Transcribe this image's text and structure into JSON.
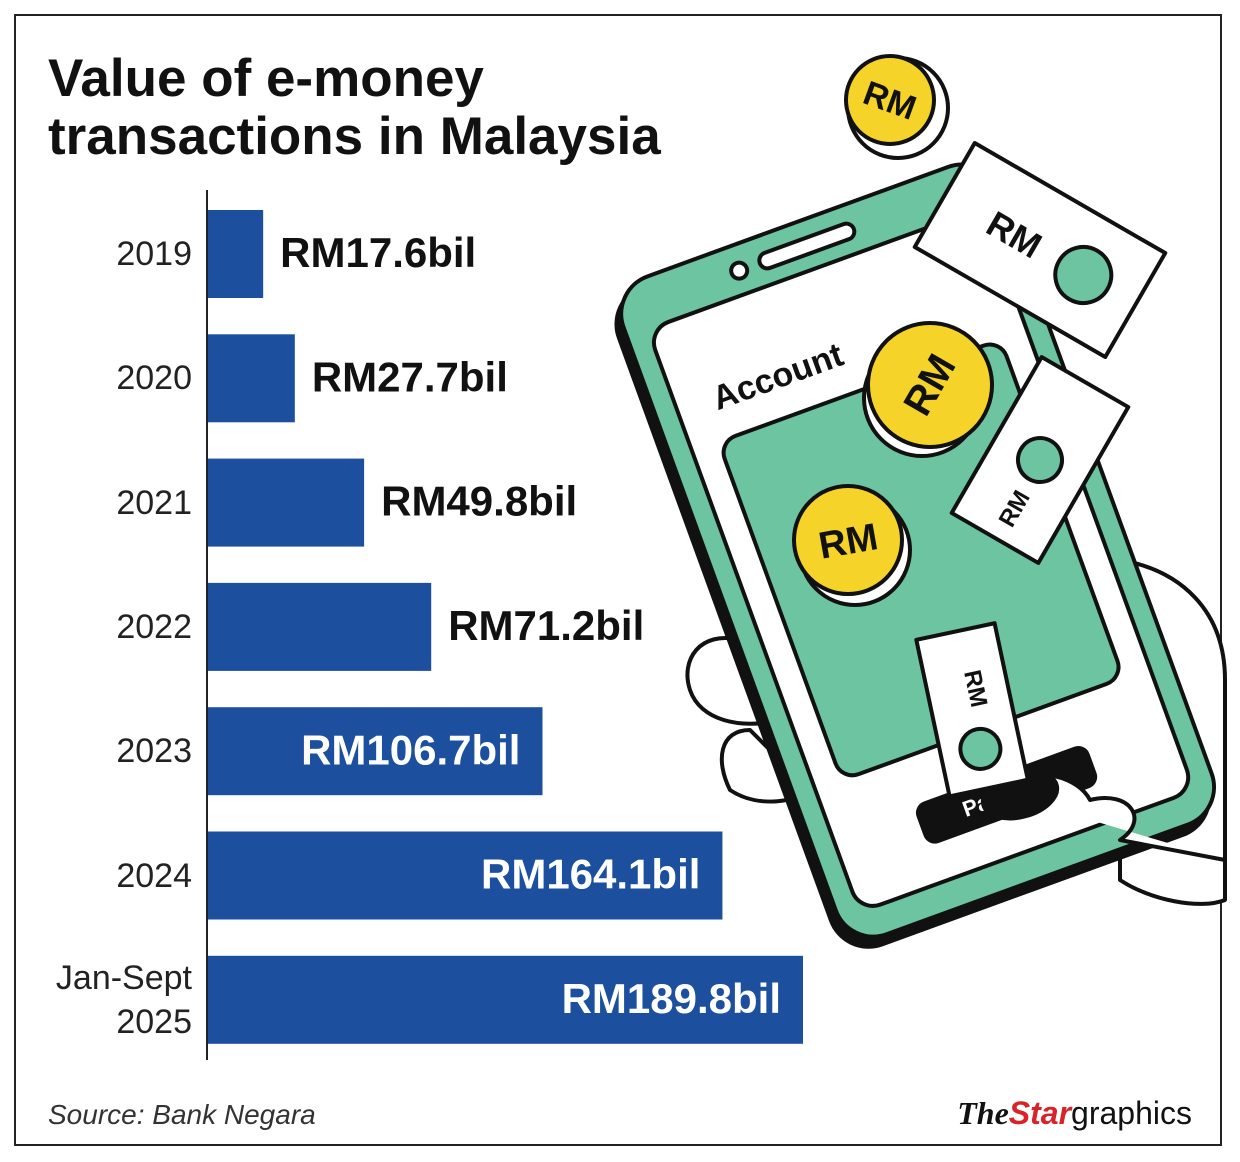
{
  "chart_data": {
    "type": "bar",
    "orientation": "horizontal",
    "title": "Value of e-money transactions in Malaysia",
    "categories": [
      "2019",
      "2020",
      "2021",
      "2022",
      "2023",
      "2024",
      "Jan-Sept 2025"
    ],
    "values": [
      17.6,
      27.7,
      49.8,
      71.2,
      106.7,
      164.1,
      189.8
    ],
    "value_labels": [
      "RM17.6bil",
      "RM27.7bil",
      "RM49.8bil",
      "RM71.2bil",
      "RM106.7bil",
      "RM164.1bil",
      "RM189.8bil"
    ],
    "color": "#1d4f9f",
    "source": "Source: Bank Negara"
  },
  "credit": {
    "the": "The",
    "star": "Star",
    "graphics": "graphics"
  },
  "illustration": {
    "coin": "RM",
    "screen": "Account",
    "button": "Pay Now"
  }
}
